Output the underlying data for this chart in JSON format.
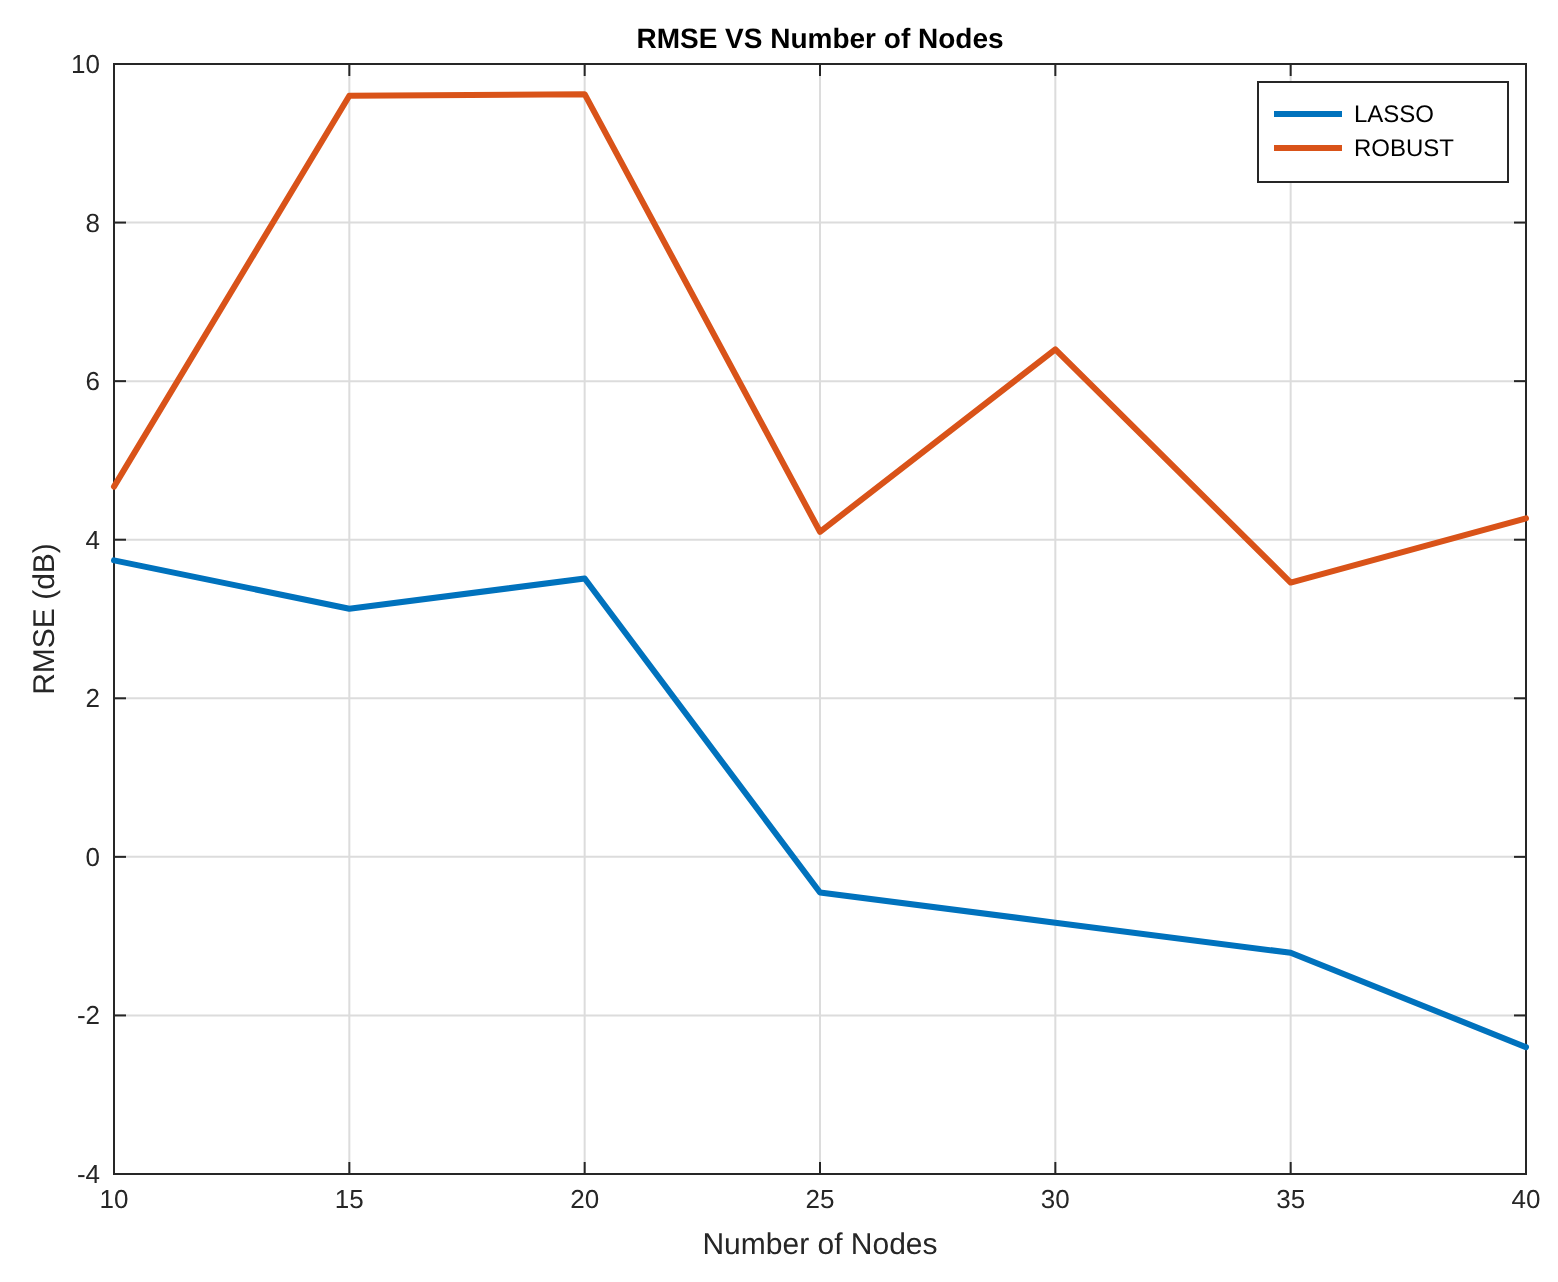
{
  "chart_data": {
    "type": "line",
    "title": "RMSE VS Number of Nodes",
    "xlabel": "Number of Nodes",
    "ylabel": "RMSE (dB)",
    "x": [
      10,
      15,
      20,
      25,
      30,
      35,
      40
    ],
    "series": [
      {
        "name": "LASSO",
        "color": "#0072bd",
        "values": [
          3.74,
          3.13,
          3.51,
          -0.45,
          -0.83,
          -1.21,
          -2.4
        ]
      },
      {
        "name": "ROBUST",
        "color": "#d95319",
        "values": [
          4.67,
          9.6,
          9.62,
          4.1,
          6.4,
          3.46,
          4.27
        ]
      }
    ],
    "xlim": [
      10,
      40
    ],
    "xticks": [
      10,
      15,
      20,
      25,
      30,
      35,
      40
    ],
    "ylim": [
      -4,
      10
    ],
    "yticks": [
      -4,
      -2,
      0,
      2,
      4,
      6,
      8,
      10
    ],
    "grid": true,
    "legend": "top right",
    "marker": "none",
    "line_style": "solid"
  }
}
